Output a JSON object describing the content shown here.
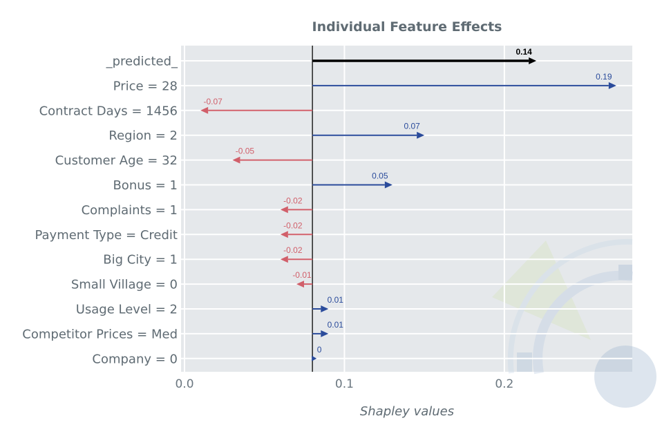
{
  "chart_data": {
    "type": "bar",
    "title": "Individual Feature Effects",
    "xlabel": "Shapley values",
    "ylabel": "",
    "xlim": [
      0.0,
      0.28
    ],
    "xticks": [
      0.0,
      0.1,
      0.2
    ],
    "xtick_labels": [
      "0.0",
      "0.1",
      "0.2"
    ],
    "base_value": 0.08,
    "grid": true,
    "colors": {
      "positive": "#2a4b9b",
      "negative": "#d15f6a",
      "predicted": "#000000",
      "plot_background": "#e5e8eb",
      "grid": "#ffffff"
    },
    "categories": [
      "_predicted_",
      "Price = 28",
      "Contract Days = 1456",
      "Region = 2",
      "Customer Age = 32",
      "Bonus = 1",
      "Complaints = 1",
      "Payment Type = Credit",
      "Big City = 1",
      "Small Village = 0",
      "Usage Level = 2",
      "Competitor Prices = Med",
      "Company = 0"
    ],
    "values": [
      0.14,
      0.19,
      -0.07,
      0.07,
      -0.05,
      0.05,
      -0.02,
      -0.02,
      -0.02,
      -0.01,
      0.01,
      0.01,
      0
    ],
    "value_labels": [
      "0.14",
      "0.19",
      "-0.07",
      "0.07",
      "-0.05",
      "0.05",
      "-0.02",
      "-0.02",
      "-0.02",
      "-0.01",
      "0.01",
      "0.01",
      "0"
    ]
  }
}
